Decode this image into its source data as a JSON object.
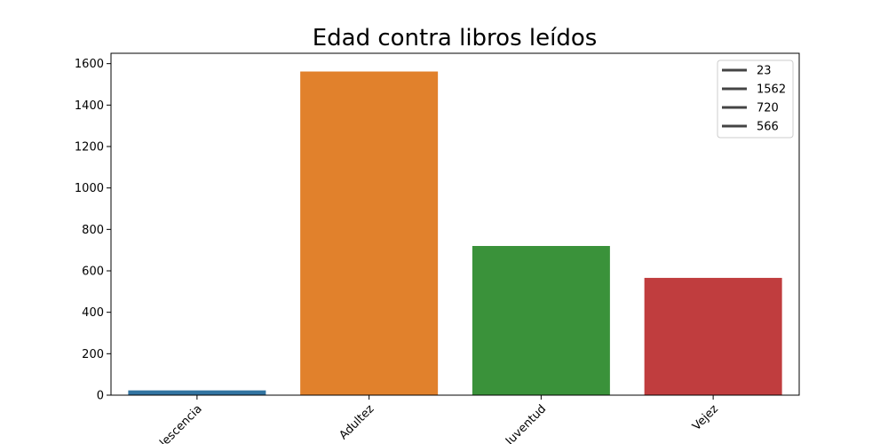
{
  "chart_data": {
    "type": "bar",
    "title": "Edad contra libros leídos",
    "categories": [
      "Adolescencia",
      "Adultez",
      "Juventud",
      "Vejez"
    ],
    "values": [
      23,
      1562,
      720,
      566
    ],
    "colors": [
      "#3274a1",
      "#e1812c",
      "#3a923a",
      "#c03d3e"
    ],
    "xlabel": "",
    "ylabel": "",
    "ylim": [
      0,
      1650
    ],
    "yticks": [
      0,
      200,
      400,
      600,
      800,
      1000,
      1200,
      1400,
      1600
    ],
    "xtick_rotation": 45,
    "grid": false,
    "legend": {
      "placement": "top-right",
      "entries": [
        "23",
        "1562",
        "720",
        "566"
      ],
      "line_color": "#444444"
    }
  }
}
